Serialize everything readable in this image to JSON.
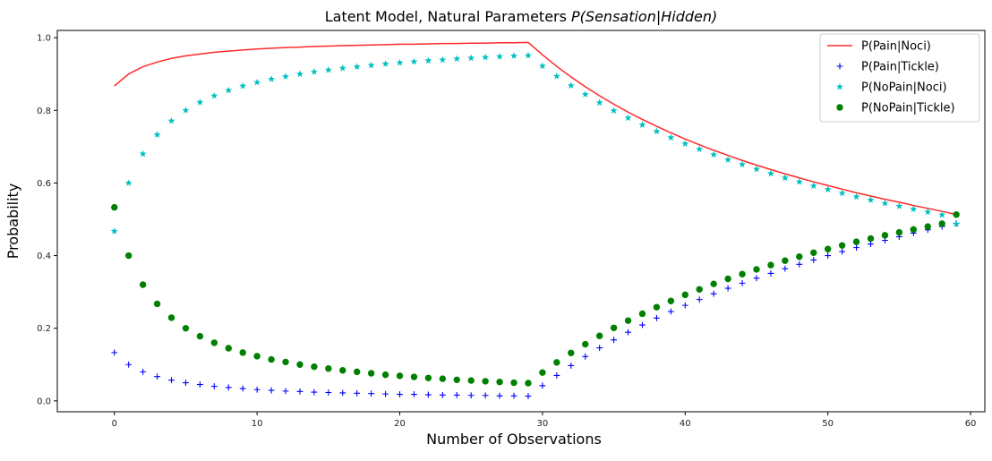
{
  "chart_data": {
    "type": "scatter",
    "title_prefix": "Latent Model, Natural Parameters ",
    "title_math": "P(Sensation|Hidden)",
    "xlabel": "Number of Observations",
    "ylabel": "Probability",
    "xlim": [
      -4,
      61
    ],
    "ylim": [
      -0.03,
      1.02
    ],
    "xticks": [
      0,
      10,
      20,
      30,
      40,
      50,
      60
    ],
    "yticks": [
      0.0,
      0.2,
      0.4,
      0.6,
      0.8,
      1.0
    ],
    "xtick_labels": [
      "0",
      "10",
      "20",
      "30",
      "40",
      "50",
      "60"
    ],
    "ytick_labels": [
      "0.0",
      "0.2",
      "0.4",
      "0.6",
      "0.8",
      "1.0"
    ],
    "grid": false,
    "legend_position": "top-right",
    "x": [
      0,
      1,
      2,
      3,
      4,
      5,
      6,
      7,
      8,
      9,
      10,
      11,
      12,
      13,
      14,
      15,
      16,
      17,
      18,
      19,
      20,
      21,
      22,
      23,
      24,
      25,
      26,
      27,
      28,
      29,
      30,
      31,
      32,
      33,
      34,
      35,
      36,
      37,
      38,
      39,
      40,
      41,
      42,
      43,
      44,
      45,
      46,
      47,
      48,
      49,
      50,
      51,
      52,
      53,
      54,
      55,
      56,
      57,
      58,
      59
    ],
    "series": [
      {
        "name": "P(Pain|Noci)",
        "style": "line",
        "color": "#ff2a2a",
        "values": [
          0.867,
          0.9,
          0.92,
          0.933,
          0.943,
          0.95,
          0.955,
          0.96,
          0.963,
          0.966,
          0.969,
          0.971,
          0.973,
          0.974,
          0.976,
          0.977,
          0.978,
          0.979,
          0.98,
          0.981,
          0.982,
          0.982,
          0.983,
          0.984,
          0.984,
          0.985,
          0.985,
          0.986,
          0.986,
          0.987,
          0.953,
          0.921,
          0.892,
          0.865,
          0.84,
          0.817,
          0.795,
          0.775,
          0.756,
          0.738,
          0.721,
          0.705,
          0.69,
          0.676,
          0.662,
          0.649,
          0.637,
          0.625,
          0.614,
          0.603,
          0.593,
          0.583,
          0.573,
          0.564,
          0.555,
          0.547,
          0.538,
          0.53,
          0.522,
          0.513
        ]
      },
      {
        "name": "P(Pain|Tickle)",
        "style": "plus",
        "color": "#0000ff",
        "values": [
          0.133,
          0.1,
          0.08,
          0.067,
          0.057,
          0.05,
          0.045,
          0.04,
          0.037,
          0.034,
          0.031,
          0.029,
          0.027,
          0.026,
          0.024,
          0.023,
          0.022,
          0.021,
          0.02,
          0.019,
          0.018,
          0.018,
          0.017,
          0.016,
          0.016,
          0.015,
          0.015,
          0.014,
          0.014,
          0.013,
          0.042,
          0.07,
          0.097,
          0.122,
          0.146,
          0.168,
          0.189,
          0.209,
          0.228,
          0.246,
          0.263,
          0.279,
          0.295,
          0.31,
          0.324,
          0.338,
          0.351,
          0.364,
          0.376,
          0.388,
          0.4,
          0.411,
          0.422,
          0.432,
          0.442,
          0.452,
          0.462,
          0.471,
          0.48,
          0.489
        ]
      },
      {
        "name": "P(NoPain|Noci)",
        "style": "star",
        "color": "#00c0c0",
        "values": [
          0.467,
          0.6,
          0.68,
          0.733,
          0.771,
          0.8,
          0.822,
          0.84,
          0.855,
          0.867,
          0.877,
          0.886,
          0.893,
          0.9,
          0.906,
          0.911,
          0.916,
          0.92,
          0.924,
          0.928,
          0.931,
          0.934,
          0.937,
          0.939,
          0.942,
          0.944,
          0.946,
          0.948,
          0.95,
          0.951,
          0.922,
          0.894,
          0.868,
          0.844,
          0.821,
          0.799,
          0.779,
          0.76,
          0.742,
          0.725,
          0.708,
          0.693,
          0.678,
          0.664,
          0.651,
          0.638,
          0.626,
          0.614,
          0.603,
          0.592,
          0.582,
          0.572,
          0.562,
          0.553,
          0.544,
          0.536,
          0.528,
          0.52,
          0.512,
          0.487
        ]
      },
      {
        "name": "P(NoPain|Tickle)",
        "style": "dot",
        "color": "#008000",
        "values": [
          0.533,
          0.4,
          0.32,
          0.267,
          0.229,
          0.2,
          0.178,
          0.16,
          0.145,
          0.133,
          0.123,
          0.114,
          0.107,
          0.1,
          0.094,
          0.089,
          0.084,
          0.08,
          0.076,
          0.072,
          0.069,
          0.066,
          0.063,
          0.061,
          0.058,
          0.056,
          0.054,
          0.052,
          0.05,
          0.049,
          0.078,
          0.106,
          0.132,
          0.156,
          0.179,
          0.201,
          0.221,
          0.24,
          0.258,
          0.275,
          0.292,
          0.307,
          0.322,
          0.336,
          0.349,
          0.362,
          0.374,
          0.386,
          0.397,
          0.408,
          0.418,
          0.428,
          0.438,
          0.447,
          0.456,
          0.464,
          0.472,
          0.48,
          0.488,
          0.513
        ]
      }
    ]
  }
}
